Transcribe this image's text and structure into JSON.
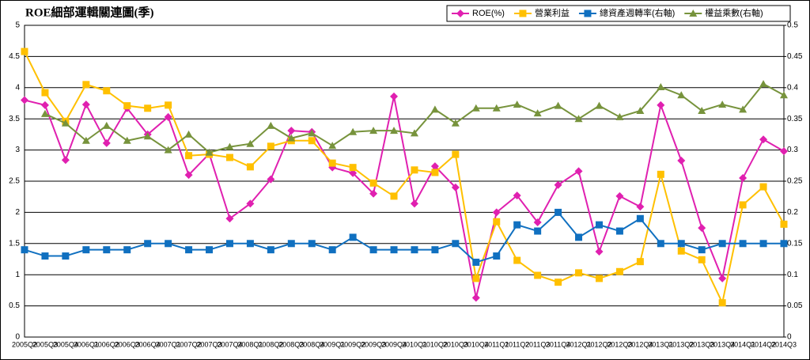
{
  "chart_data": {
    "type": "line",
    "title": "ROE細部運輯關連圖(季)",
    "categories": [
      "2005Q2",
      "2005Q3",
      "2005Q4",
      "2006Q1",
      "2006Q2",
      "2006Q3",
      "2006Q4",
      "2007Q1",
      "2007Q2",
      "2007Q3",
      "2007Q4",
      "2008Q1",
      "2008Q2",
      "2008Q3",
      "2008Q4",
      "2009Q1",
      "2009Q2",
      "2009Q3",
      "2009Q4",
      "2010Q1",
      "2010Q2",
      "2010Q3",
      "2010Q4",
      "2011Q1",
      "2011Q2",
      "2011Q3",
      "2011Q4",
      "2012Q1",
      "2012Q2",
      "2012Q3",
      "2012Q4",
      "2013Q1",
      "2013Q2",
      "2013Q3",
      "2013Q4",
      "2014Q1",
      "2014Q2",
      "2014Q3"
    ],
    "series": [
      {
        "name": "ROE(%)",
        "color": "#e020b0",
        "marker": "diamond",
        "values": [
          3.8,
          3.72,
          2.84,
          3.73,
          3.11,
          3.67,
          3.25,
          3.53,
          2.6,
          2.94,
          1.9,
          2.14,
          2.53,
          3.31,
          3.29,
          2.72,
          2.63,
          2.3,
          3.86,
          2.14,
          2.74,
          2.4,
          0.63,
          2.0,
          2.27,
          1.84,
          2.44,
          2.66,
          1.37,
          2.26,
          2.09,
          3.72,
          2.83,
          1.75,
          0.94,
          2.55,
          3.17,
          2.98
        ]
      },
      {
        "name": "營業利益",
        "color": "#ffc000",
        "marker": "square",
        "values": [
          4.58,
          3.92,
          3.46,
          4.05,
          3.95,
          3.71,
          3.67,
          3.72,
          2.91,
          2.93,
          2.88,
          2.73,
          3.06,
          3.15,
          3.15,
          2.79,
          2.72,
          2.47,
          2.26,
          2.68,
          2.64,
          2.93,
          0.94,
          1.85,
          1.23,
          0.99,
          0.88,
          1.03,
          0.94,
          1.05,
          1.21,
          2.61,
          1.38,
          1.24,
          0.55,
          2.12,
          2.41,
          1.81
        ]
      },
      {
        "name": "總資產週轉率(右軸)",
        "color": "#1070c0",
        "marker": "square",
        "axis": "y2",
        "values": [
          0.14,
          0.13,
          0.13,
          0.14,
          0.14,
          0.14,
          0.15,
          0.15,
          0.14,
          0.14,
          0.15,
          0.15,
          0.14,
          0.15,
          0.15,
          0.14,
          0.16,
          0.14,
          0.14,
          0.14,
          0.14,
          0.15,
          0.12,
          0.13,
          0.18,
          0.17,
          0.2,
          0.16,
          0.18,
          0.17,
          0.19,
          0.15,
          0.15,
          0.14,
          0.15,
          0.15,
          0.15,
          0.15
        ]
      },
      {
        "name": "權益乘數(右軸)",
        "color": "#77933c",
        "marker": "triangle",
        "axis": "y2",
        "values": [
          null,
          0.358,
          0.343,
          0.315,
          0.339,
          0.315,
          0.322,
          0.3,
          0.325,
          0.296,
          0.305,
          0.31,
          0.339,
          0.319,
          0.327,
          0.307,
          0.329,
          0.331,
          0.331,
          0.327,
          0.365,
          0.343,
          0.367,
          0.367,
          0.373,
          0.359,
          0.371,
          0.35,
          0.371,
          0.353,
          0.363,
          0.401,
          0.388,
          0.363,
          0.373,
          0.365,
          0.406,
          0.388
        ]
      }
    ],
    "ylim": [
      0,
      5
    ],
    "yticks": [
      0,
      0.5,
      1,
      1.5,
      2,
      2.5,
      3,
      3.5,
      4,
      4.5,
      5
    ],
    "y2lim": [
      0,
      0.5
    ],
    "y2ticks": [
      0,
      0.05,
      0.1,
      0.15,
      0.2,
      0.25,
      0.3,
      0.35,
      0.4,
      0.45,
      0.5
    ],
    "grid": true,
    "legend": "top-right"
  }
}
